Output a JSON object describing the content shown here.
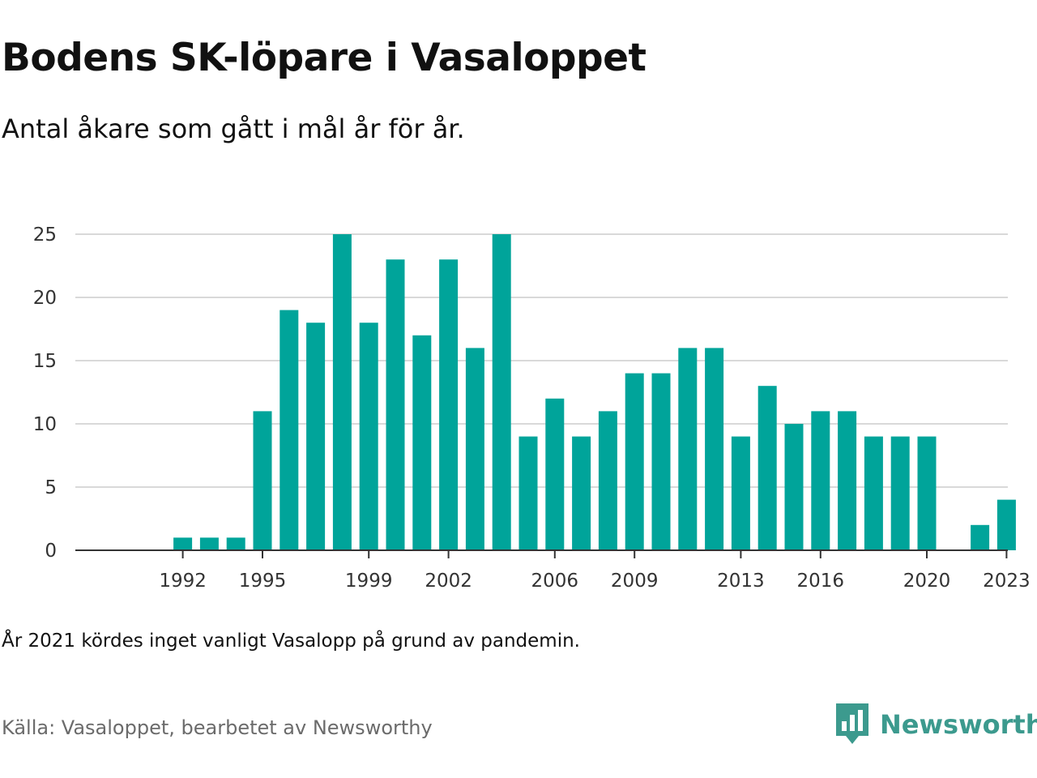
{
  "header": {
    "title": "Bodens SK-löpare i Vasaloppet",
    "subtitle": "Antal åkare som gått i mål år för år."
  },
  "footer": {
    "note": "År 2021 kördes inget vanligt Vasalopp på grund av pandemin.",
    "source": "Källa: Vasaloppet, bearbetet av Newsworthy",
    "brand": "Newsworthy"
  },
  "colors": {
    "bar": "#00a49a",
    "grid": "#d9d9d9",
    "axis": "#333333",
    "brand": "#3c9a8e"
  },
  "chart_data": {
    "type": "bar",
    "title": "Bodens SK-löpare i Vasaloppet",
    "subtitle": "Antal åkare som gått i mål år för år.",
    "xlabel": "",
    "ylabel": "",
    "categories": [
      1990,
      1991,
      1992,
      1993,
      1994,
      1995,
      1996,
      1997,
      1998,
      1999,
      2000,
      2001,
      2002,
      2003,
      2004,
      2005,
      2006,
      2007,
      2008,
      2009,
      2010,
      2011,
      2012,
      2013,
      2014,
      2015,
      2016,
      2017,
      2018,
      2019,
      2020,
      2021,
      2022,
      2023,
      2024
    ],
    "values": [
      0,
      0,
      1,
      1,
      1,
      11,
      19,
      18,
      25,
      18,
      23,
      17,
      23,
      16,
      25,
      9,
      12,
      9,
      11,
      14,
      14,
      16,
      16,
      9,
      13,
      10,
      11,
      11,
      9,
      9,
      9,
      0,
      2,
      4,
      0
    ],
    "xticks": [
      "1992",
      "1995",
      "1999",
      "2002",
      "2006",
      "2009",
      "2013",
      "2016",
      "2020",
      "2023"
    ],
    "yticks": [
      "0",
      "5",
      "10",
      "15",
      "20",
      "25"
    ],
    "ylim": [
      0,
      25
    ],
    "grid": true,
    "legend": "none"
  }
}
